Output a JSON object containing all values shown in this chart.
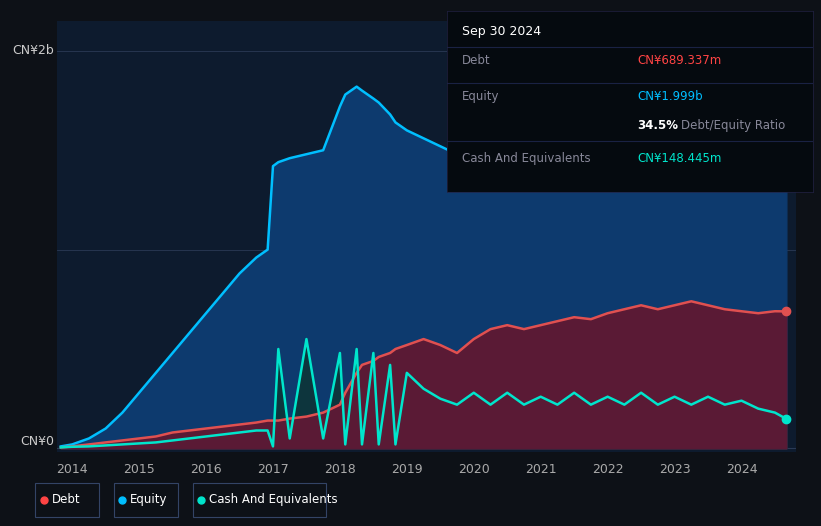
{
  "background_color": "#0d1117",
  "plot_bg_color": "#0d1b2e",
  "title_box": {
    "date": "Sep 30 2024",
    "debt_label": "Debt",
    "debt_value": "CN¥689.337m",
    "debt_color": "#ff4444",
    "equity_label": "Equity",
    "equity_value": "CN¥1.999b",
    "equity_color": "#00bfff",
    "ratio_bold": "34.5%",
    "ratio_text": "Debt/Equity Ratio",
    "cash_label": "Cash And Equivalents",
    "cash_value": "CN¥148.445m",
    "cash_color": "#00e5cc"
  },
  "y_label_top": "CN¥2b",
  "y_label_bottom": "CN¥0",
  "legend": [
    {
      "label": "Debt",
      "color": "#ff4444"
    },
    {
      "label": "Equity",
      "color": "#00bfff"
    },
    {
      "label": "Cash And Equivalents",
      "color": "#00e5cc"
    }
  ],
  "equity_color": "#00bfff",
  "equity_fill": "#0d3a6e",
  "debt_color": "#e05050",
  "debt_fill": "#5a1a35",
  "cash_color": "#00e5cc",
  "cash_fill": "#0d3535",
  "years": [
    2013.83,
    2014.0,
    2014.25,
    2014.5,
    2014.75,
    2015.0,
    2015.25,
    2015.5,
    2015.75,
    2016.0,
    2016.25,
    2016.5,
    2016.75,
    2016.92,
    2017.0,
    2017.08,
    2017.25,
    2017.5,
    2017.75,
    2018.0,
    2018.08,
    2018.25,
    2018.33,
    2018.5,
    2018.58,
    2018.75,
    2018.83,
    2019.0,
    2019.25,
    2019.5,
    2019.75,
    2020.0,
    2020.25,
    2020.5,
    2020.75,
    2021.0,
    2021.25,
    2021.5,
    2021.75,
    2022.0,
    2022.25,
    2022.5,
    2022.75,
    2023.0,
    2023.25,
    2023.5,
    2023.75,
    2024.0,
    2024.25,
    2024.5,
    2024.67
  ],
  "equity": [
    0.01,
    0.02,
    0.05,
    0.1,
    0.18,
    0.28,
    0.38,
    0.48,
    0.58,
    0.68,
    0.78,
    0.88,
    0.96,
    1.0,
    1.42,
    1.44,
    1.46,
    1.48,
    1.5,
    1.72,
    1.78,
    1.82,
    1.8,
    1.76,
    1.74,
    1.68,
    1.64,
    1.6,
    1.56,
    1.52,
    1.48,
    1.44,
    1.4,
    1.38,
    1.36,
    1.34,
    1.32,
    1.34,
    1.36,
    1.38,
    1.42,
    1.46,
    1.44,
    1.5,
    1.56,
    1.62,
    1.68,
    1.86,
    1.95,
    1.999,
    1.999
  ],
  "debt": [
    0.005,
    0.01,
    0.02,
    0.03,
    0.04,
    0.05,
    0.06,
    0.08,
    0.09,
    0.1,
    0.11,
    0.12,
    0.13,
    0.14,
    0.14,
    0.14,
    0.15,
    0.16,
    0.18,
    0.22,
    0.28,
    0.38,
    0.42,
    0.44,
    0.46,
    0.48,
    0.5,
    0.52,
    0.55,
    0.52,
    0.48,
    0.55,
    0.6,
    0.62,
    0.6,
    0.62,
    0.64,
    0.66,
    0.65,
    0.68,
    0.7,
    0.72,
    0.7,
    0.72,
    0.74,
    0.72,
    0.7,
    0.69,
    0.68,
    0.69,
    0.6893
  ],
  "cash": [
    0.005,
    0.008,
    0.01,
    0.015,
    0.02,
    0.025,
    0.03,
    0.04,
    0.05,
    0.06,
    0.07,
    0.08,
    0.09,
    0.09,
    0.01,
    0.5,
    0.05,
    0.55,
    0.05,
    0.48,
    0.02,
    0.5,
    0.02,
    0.48,
    0.02,
    0.42,
    0.02,
    0.38,
    0.3,
    0.25,
    0.22,
    0.28,
    0.22,
    0.28,
    0.22,
    0.26,
    0.22,
    0.28,
    0.22,
    0.26,
    0.22,
    0.28,
    0.22,
    0.26,
    0.22,
    0.26,
    0.22,
    0.24,
    0.2,
    0.18,
    0.1484
  ]
}
